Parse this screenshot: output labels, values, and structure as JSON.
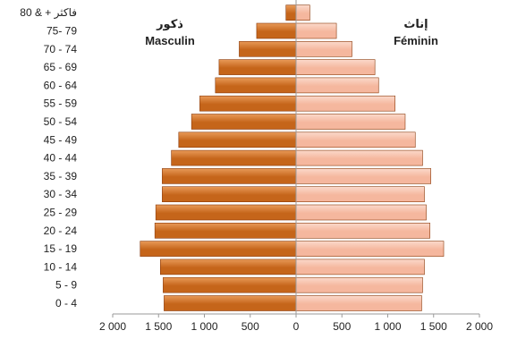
{
  "colors": {
    "male_fill": "#c5651a",
    "male_fill_light": "#e89a58",
    "female_fill": "#f5b79e",
    "female_fill_light": "#fbd9cb",
    "bar_edge": "#8a3a0a"
  },
  "chart_data": {
    "type": "bar",
    "orientation": "horizontal",
    "layout": "population-pyramid",
    "categories": [
      "0 - 4",
      "5 - 9",
      "10 - 14",
      "15 - 19",
      "20 - 24",
      "25 - 29",
      "30 - 34",
      "35 - 39",
      "40 - 44",
      "45 - 49",
      "50 - 54",
      "55 - 59",
      "60 - 64",
      "65 - 69",
      "70 - 74",
      "75- 79",
      "80 & + فاكثر"
    ],
    "series": [
      {
        "name_ar": "ذكور",
        "name": "Masculin",
        "side": "left",
        "values": [
          1440,
          1450,
          1480,
          1700,
          1540,
          1530,
          1460,
          1460,
          1360,
          1280,
          1140,
          1050,
          880,
          840,
          620,
          430,
          110
        ]
      },
      {
        "name_ar": "إناث",
        "name": "Féminin",
        "side": "right",
        "values": [
          1370,
          1380,
          1400,
          1610,
          1460,
          1420,
          1400,
          1470,
          1380,
          1300,
          1190,
          1080,
          900,
          860,
          610,
          440,
          150
        ]
      }
    ],
    "x_ticks": [
      "2 000",
      "1 500",
      "1 000",
      "500",
      "0",
      "500",
      "1 000",
      "1 500",
      "2 000"
    ],
    "x_tick_values": [
      -2000,
      -1500,
      -1000,
      -500,
      0,
      500,
      1000,
      1500,
      2000
    ],
    "xlim": [
      -2000,
      2000
    ],
    "legend": "inside-top"
  }
}
